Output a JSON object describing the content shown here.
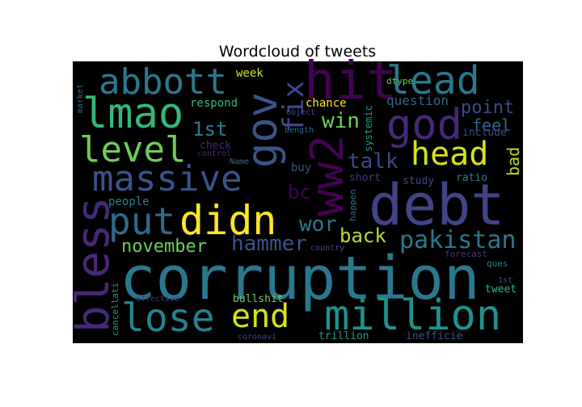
{
  "chart_data": {
    "type": "wordcloud",
    "title": "Wordcloud of tweets",
    "background": "#000000",
    "words": [
      {
        "text": "corruption",
        "weight": 100,
        "color": "#2a788e"
      },
      {
        "text": "debt",
        "weight": 92,
        "color": "#414487"
      },
      {
        "text": "million",
        "weight": 78,
        "color": "#21918c"
      },
      {
        "text": "didn",
        "weight": 72,
        "color": "#fde725"
      },
      {
        "text": "massive",
        "weight": 70,
        "color": "#3b528b"
      },
      {
        "text": "hit",
        "weight": 70,
        "color": "#440154"
      },
      {
        "text": "lmao",
        "weight": 68,
        "color": "#35b779"
      },
      {
        "text": "abbott",
        "weight": 64,
        "color": "#2a788e"
      },
      {
        "text": "god",
        "weight": 64,
        "color": "#482878"
      },
      {
        "text": "bless",
        "weight": 64,
        "color": "#482878"
      },
      {
        "text": "lose",
        "weight": 62,
        "color": "#26828e"
      },
      {
        "text": "ww2",
        "weight": 62,
        "color": "#440154"
      },
      {
        "text": "lead",
        "weight": 60,
        "color": "#2a788e"
      },
      {
        "text": "gov",
        "weight": 58,
        "color": "#3b528b"
      },
      {
        "text": "put",
        "weight": 56,
        "color": "#31688e"
      },
      {
        "text": "level",
        "weight": 55,
        "color": "#6ece58"
      },
      {
        "text": "end",
        "weight": 55,
        "color": "#d8e219"
      },
      {
        "text": "head",
        "weight": 50,
        "color": "#d8e219"
      },
      {
        "text": "fix",
        "weight": 48,
        "color": "#3e4989"
      },
      {
        "text": "pakistan",
        "weight": 36,
        "color": "#2a788e"
      },
      {
        "text": "hammer",
        "weight": 30,
        "color": "#3b528b"
      },
      {
        "text": "wor",
        "weight": 30,
        "color": "#2a788e"
      },
      {
        "text": "talk",
        "weight": 30,
        "color": "#3e4989"
      },
      {
        "text": "win",
        "weight": 28,
        "color": "#6ece58"
      },
      {
        "text": "back",
        "weight": 28,
        "color": "#b5de2b"
      },
      {
        "text": "1st",
        "weight": 28,
        "color": "#26828e"
      },
      {
        "text": "november",
        "weight": 28,
        "color": "#6ece58"
      },
      {
        "text": "bc",
        "weight": 28,
        "color": "#440154"
      },
      {
        "text": "point",
        "weight": 24,
        "color": "#3e4989"
      },
      {
        "text": "feel",
        "weight": 22,
        "color": "#31688e"
      },
      {
        "text": "bad",
        "weight": 20,
        "color": "#b5de2b"
      },
      {
        "text": "question",
        "weight": 18,
        "color": "#31688e"
      },
      {
        "text": "respond",
        "weight": 16,
        "color": "#35b779"
      },
      {
        "text": "chance",
        "weight": 16,
        "color": "#fde725"
      },
      {
        "text": "week",
        "weight": 15,
        "color": "#d8e219"
      },
      {
        "text": "buy",
        "weight": 15,
        "color": "#3b528b"
      },
      {
        "text": "people",
        "weight": 15,
        "color": "#26828e"
      },
      {
        "text": "check",
        "weight": 13,
        "color": "#482878"
      },
      {
        "text": "bullshit",
        "weight": 13,
        "color": "#6ece58"
      },
      {
        "text": "study",
        "weight": 13,
        "color": "#3e4989"
      },
      {
        "text": "short",
        "weight": 13,
        "color": "#443983"
      },
      {
        "text": "ratio",
        "weight": 13,
        "color": "#26828e"
      },
      {
        "text": "trillion",
        "weight": 13,
        "color": "#1f9e89"
      },
      {
        "text": "inefficie",
        "weight": 13,
        "color": "#3b528b"
      },
      {
        "text": "include",
        "weight": 13,
        "color": "#3e4989"
      },
      {
        "text": "tweet",
        "weight": 13,
        "color": "#35b779"
      },
      {
        "text": "systemic",
        "weight": 12,
        "color": "#1f9e89"
      },
      {
        "text": "happen",
        "weight": 11,
        "color": "#31688e"
      },
      {
        "text": "cancellati",
        "weight": 11,
        "color": "#1f9e89"
      },
      {
        "text": "forecast",
        "weight": 11,
        "color": "#443983"
      },
      {
        "text": "ques",
        "weight": 11,
        "color": "#26828e"
      },
      {
        "text": "dtype",
        "weight": 11,
        "color": "#6ece58"
      },
      {
        "text": "market",
        "weight": 10,
        "color": "#31688e"
      },
      {
        "text": "object",
        "weight": 10,
        "color": "#3e4989"
      },
      {
        "text": "Length",
        "weight": 10,
        "color": "#31688e"
      },
      {
        "text": "control",
        "weight": 10,
        "color": "#482878"
      },
      {
        "text": "Name",
        "weight": 10,
        "color": "#31688e"
      },
      {
        "text": "effective",
        "weight": 10,
        "color": "#443983"
      },
      {
        "text": "country",
        "weight": 10,
        "color": "#3e4989"
      },
      {
        "text": "coronavi",
        "weight": 10,
        "color": "#3e4989"
      },
      {
        "text": "1st",
        "weight": 10,
        "color": "#3e4989"
      }
    ]
  }
}
